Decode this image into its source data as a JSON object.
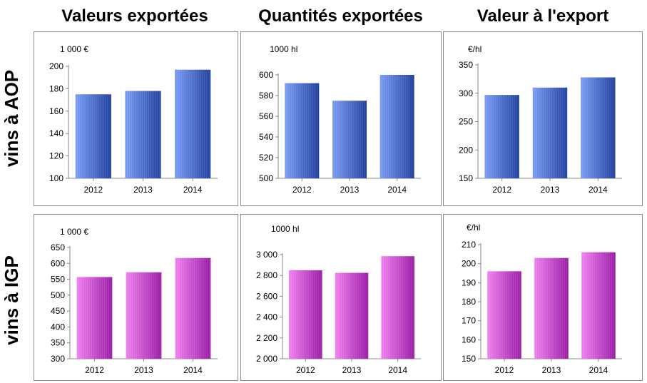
{
  "columns": [
    "Valeurs exportées",
    "Quantités exportées",
    "Valeur à l'export"
  ],
  "rows": [
    "vins à AOP",
    "vins à IGP"
  ],
  "colors": {
    "aop_light": "#7a9cf5",
    "aop_dark": "#1f3f9e",
    "igp_light": "#f07ff0",
    "igp_dark": "#9a1aa6"
  },
  "chart_data": [
    {
      "type": "bar",
      "row": "vins à AOP",
      "column": "Valeurs exportées",
      "unit": "1 000 €",
      "categories": [
        "2012",
        "2013",
        "2014"
      ],
      "values": [
        175,
        178,
        197
      ],
      "ylim": [
        100,
        200
      ],
      "yticks": [
        100,
        120,
        140,
        160,
        180,
        200
      ],
      "ytick_labels": [
        "100",
        "120",
        "140",
        "160",
        "180",
        "200"
      ]
    },
    {
      "type": "bar",
      "row": "vins à AOP",
      "column": "Quantités exportées",
      "unit": "1000 hl",
      "categories": [
        "2012",
        "2013",
        "2014"
      ],
      "values": [
        592,
        575,
        601
      ],
      "ylim": [
        500,
        600
      ],
      "yticks": [
        500,
        520,
        540,
        560,
        580,
        600
      ],
      "ytick_labels": [
        "500",
        "520",
        "540",
        "560",
        "580",
        "600"
      ]
    },
    {
      "type": "bar",
      "row": "vins à AOP",
      "column": "Valeur à l'export",
      "unit": "€/hl",
      "categories": [
        "2012",
        "2013",
        "2014"
      ],
      "values": [
        297,
        310,
        328
      ],
      "ylim": [
        150,
        350
      ],
      "yticks": [
        150,
        200,
        250,
        300,
        350
      ],
      "ytick_labels": [
        "150",
        "200",
        "250",
        "300",
        "350"
      ]
    },
    {
      "type": "bar",
      "row": "vins à IGP",
      "column": "Valeurs exportées",
      "unit": "1 000 €",
      "categories": [
        "2012",
        "2013",
        "2014"
      ],
      "values": [
        557,
        572,
        617
      ],
      "ylim": [
        300,
        650
      ],
      "yticks": [
        300,
        350,
        400,
        450,
        500,
        550,
        600,
        650
      ],
      "ytick_labels": [
        "300",
        "350",
        "400",
        "450",
        "500",
        "550",
        "600",
        "650"
      ]
    },
    {
      "type": "bar",
      "row": "vins à IGP",
      "column": "Quantités exportées",
      "unit": "1000 hl",
      "categories": [
        "2012",
        "2013",
        "2014"
      ],
      "values": [
        2850,
        2825,
        2985
      ],
      "ylim": [
        2000,
        3000
      ],
      "yticks": [
        2000,
        2200,
        2400,
        2600,
        2800,
        3000
      ],
      "ytick_labels": [
        "2 000",
        "2 200",
        "2 400",
        "2 600",
        "2 800",
        "3 000"
      ]
    },
    {
      "type": "bar",
      "row": "vins à IGP",
      "column": "Valeur à l'export",
      "unit": "€/hl",
      "categories": [
        "2012",
        "2013",
        "2014"
      ],
      "values": [
        196,
        203,
        206
      ],
      "ylim": [
        150,
        210
      ],
      "yticks": [
        150,
        160,
        170,
        180,
        190,
        200,
        210
      ],
      "ytick_labels": [
        "150",
        "160",
        "170",
        "180",
        "190",
        "200",
        "210"
      ]
    }
  ]
}
